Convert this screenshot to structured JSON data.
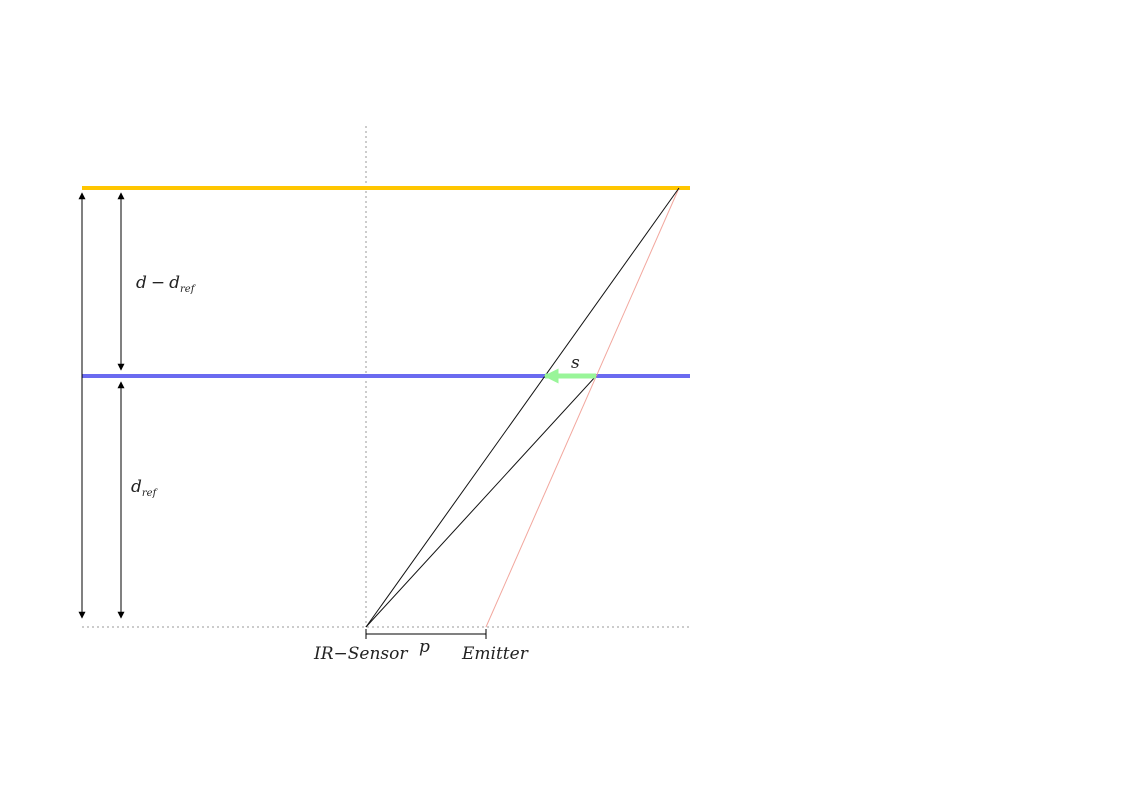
{
  "labels": {
    "d_minus": "d",
    "minus_sign": "−",
    "d_ref_base": "d",
    "ref_sub": "ref",
    "s": "s",
    "p": "p",
    "ir_sensor": "IR−Sensor",
    "emitter": "Emitter"
  },
  "colors": {
    "object_plane": "#FFC600",
    "reference_plane": "#6B6BF0",
    "shift_arrow": "#99F599",
    "emitter_ray": "#F2A79E",
    "sensor_ray": "#111111",
    "guide": "#999999"
  }
}
